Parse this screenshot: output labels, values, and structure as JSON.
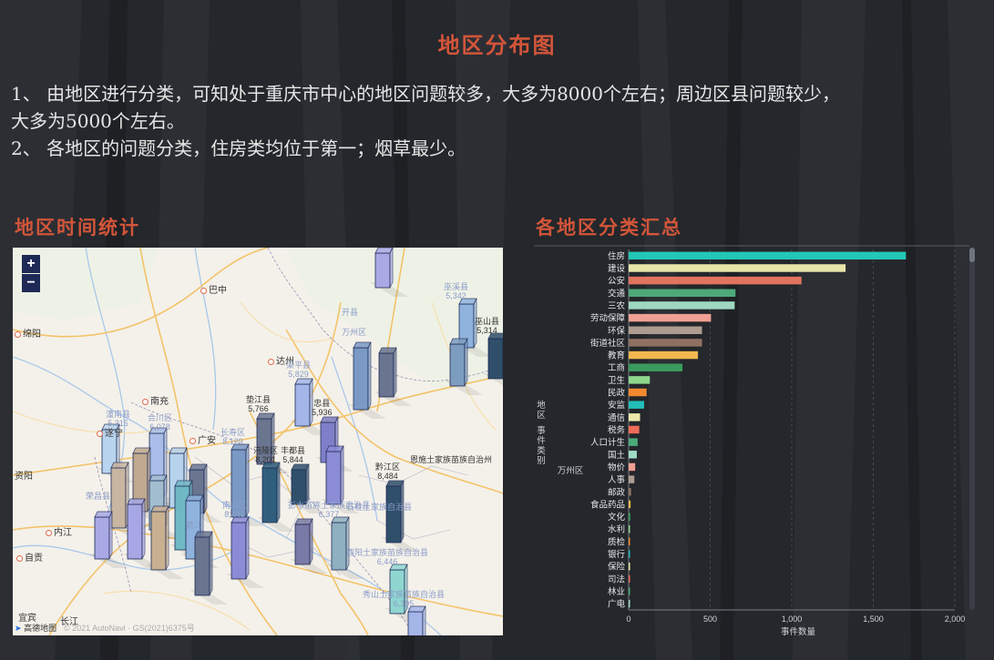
{
  "page": {
    "title": "地区分布图",
    "paragraphs": [
      " 1、 由地区进行分类，可知处于重庆市中心的地区问题较多，大多为8000个左右；周边区县问题较少，",
      "大多为5000个左右。",
      " 2、 各地区的问题分类，住房类均位于第一；烟草最少。"
    ],
    "section_left": "地区时间统计",
    "section_right": "各地区分类汇总"
  },
  "map": {
    "zoom_in": "+",
    "zoom_out": "−",
    "cities": [
      "巴中",
      "绵阳",
      "达州",
      "南充",
      "遂宁",
      "广安",
      "资阳",
      "内江",
      "自贡",
      "宜宾",
      "长江"
    ],
    "district_labels": [
      {
        "name": "巫溪县",
        "value": "5,342"
      },
      {
        "name": "巫山县",
        "value": "5,314"
      },
      {
        "name": "开县",
        "value": ""
      },
      {
        "name": "万州区",
        "value": ""
      },
      {
        "name": "梁平县",
        "value": "5,829"
      },
      {
        "name": "垫江县",
        "value": "5,766"
      },
      {
        "name": "忠县",
        "value": "5,936"
      },
      {
        "name": "合川区",
        "value": "6,078"
      },
      {
        "name": "潼南县",
        "value": "5,315"
      },
      {
        "name": "长寿区",
        "value": "8,129"
      },
      {
        "name": "涪陵区",
        "value": "8,201"
      },
      {
        "name": "丰都县",
        "value": "5,844"
      },
      {
        "name": "黔江区",
        "value": "8,484"
      },
      {
        "name": "南川区",
        "value": "8,445"
      },
      {
        "name": "石柱土家族自治县",
        "value": ""
      },
      {
        "name": "彭水苗族土家族自治县",
        "value": "6,377"
      },
      {
        "name": "酉阳土家族苗族自治县",
        "value": "6,446"
      },
      {
        "name": "秀山土家族苗族自治县",
        "value": "6,395"
      },
      {
        "name": "荣昌县",
        "value": ""
      },
      {
        "name": "綦江",
        "value": ""
      },
      {
        "name": "恩施土家族苗族自治州",
        "value": ""
      }
    ],
    "logo": "高德地图",
    "copyright": "© 2021 AutoNavi · GS(2021)6375号"
  },
  "bar_axis": {
    "ylabel": "地区 事件类别",
    "side_label": "万州区",
    "xlabel": "事件数量"
  },
  "chart_data": {
    "type": "bar",
    "orientation": "horizontal",
    "categories": [
      "住房",
      "建设",
      "公安",
      "交通",
      "三农",
      "劳动保障",
      "环保",
      "街道社区",
      "教育",
      "工商",
      "卫生",
      "民政",
      "安监",
      "通信",
      "税务",
      "人口计生",
      "国土",
      "物价",
      "人事",
      "邮政",
      "食品药品",
      "文化",
      "水利",
      "质检",
      "银行",
      "保险",
      "司法",
      "林业",
      "广电"
    ],
    "values": [
      1700,
      1330,
      1060,
      655,
      650,
      505,
      450,
      450,
      425,
      330,
      130,
      110,
      95,
      70,
      65,
      55,
      50,
      40,
      35,
      15,
      12,
      10,
      8,
      8,
      5,
      5,
      4,
      3,
      2
    ],
    "colors": [
      "#23c7b6",
      "#e9e5a9",
      "#e2735e",
      "#4ea97a",
      "#9fd7c1",
      "#f0a094",
      "#ad9c8f",
      "#8f7162",
      "#f1b74f",
      "#3a9b5e",
      "#8fd68c",
      "#f28a30",
      "#22bdb8",
      "#efe9a9",
      "#f06b58",
      "#4ca97a",
      "#9edcc6",
      "#ef9f92",
      "#ad9c8f",
      "#8f7162",
      "#f1b74f",
      "#3a9b5e",
      "#8fd68c",
      "#f28a30",
      "#22bdb8",
      "#efe9a9",
      "#f06b58",
      "#4ca97a",
      "#9edcc6"
    ],
    "xlim": [
      0,
      2000
    ],
    "xticks": [
      "0",
      "500",
      "1,000",
      "1,500",
      "2,000"
    ],
    "xlabel": "事件数量",
    "ylabel": "地区 事件类别",
    "grid": "vertical dashed"
  },
  "colors": {
    "accent": "#d2553a",
    "background": "#24272b",
    "text": "#e6e6e6"
  }
}
